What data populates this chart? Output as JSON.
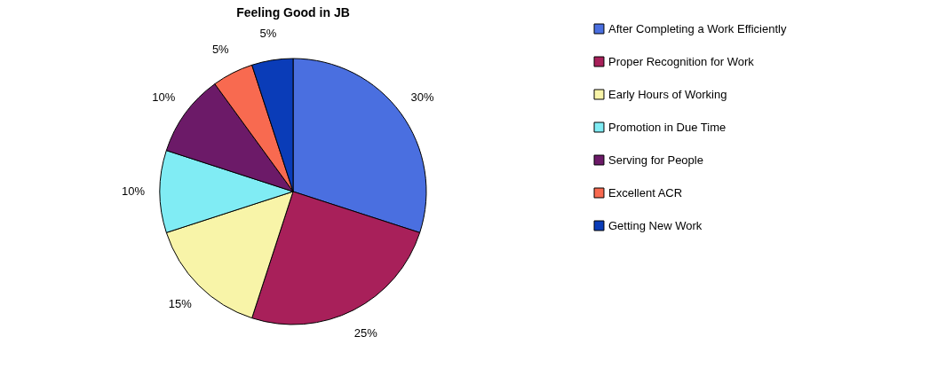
{
  "chart_data": {
    "type": "pie",
    "title": "Feeling Good in JB",
    "categories": [
      "After Completing a Work Efficiently",
      "Proper Recognition for Work",
      "Early Hours of Working",
      "Promotion in Due Time",
      "Serving for People",
      "Excellent ACR",
      "Getting New Work"
    ],
    "values": [
      30,
      25,
      15,
      10,
      10,
      5,
      5
    ],
    "colors": [
      "#4a6fe0",
      "#a8205a",
      "#f8f4a8",
      "#80ecf4",
      "#6c1a68",
      "#f86a50",
      "#0a3cb8"
    ],
    "value_labels": [
      "30%",
      "25%",
      "15%",
      "10%",
      "10%",
      "5%",
      "5%"
    ],
    "legend": "right"
  }
}
